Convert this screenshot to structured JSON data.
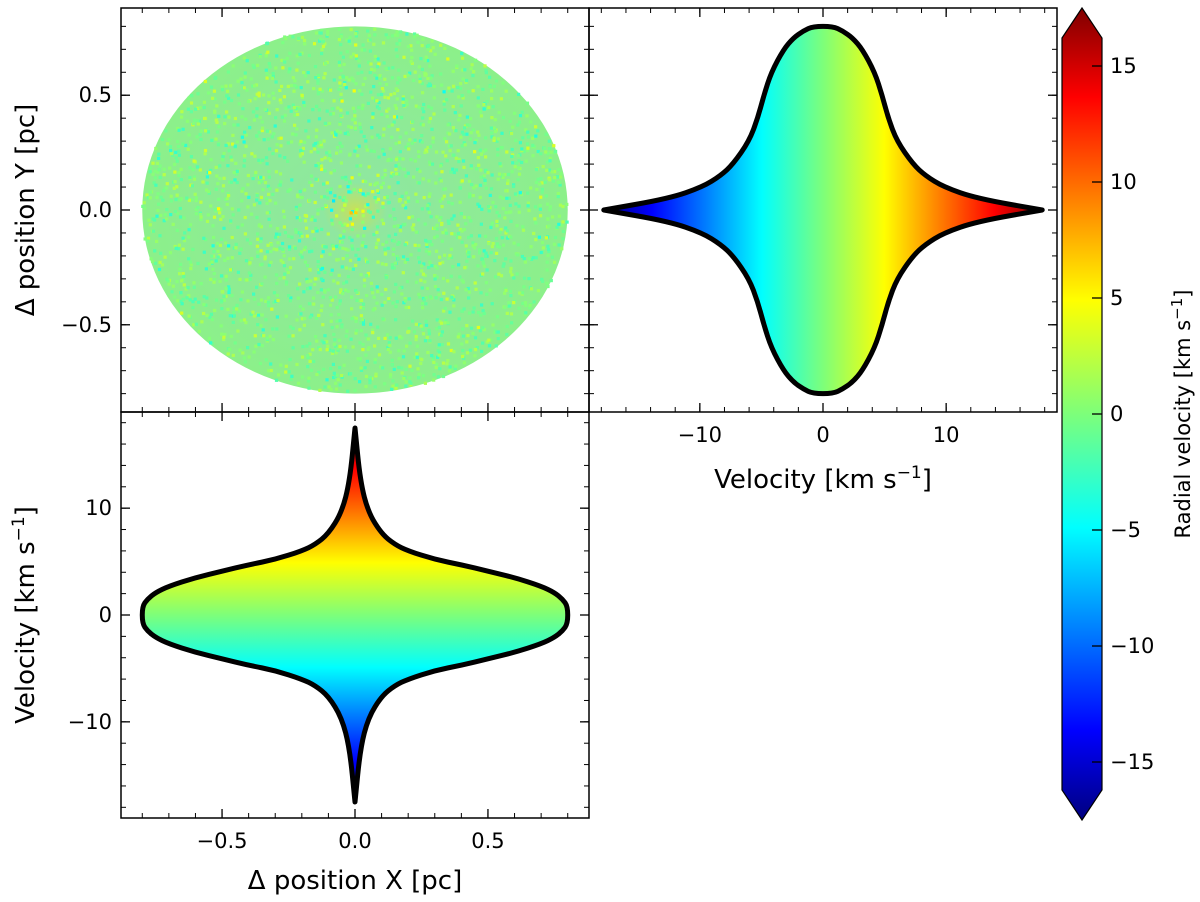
{
  "chart_data": [
    {
      "panel": "top-left",
      "type": "scatter",
      "description_shape": "filled disc of points colored by radial velocity",
      "xlim": [
        -0.88,
        0.88
      ],
      "ylim": [
        -0.88,
        0.88
      ],
      "disc_radius": 0.8,
      "xlabel": "",
      "ylabel": "Δ position Y [pc]",
      "yticks": [
        {
          "value": 0.5,
          "label": "0.5"
        },
        {
          "value": 0.0,
          "label": "0.0"
        },
        {
          "value": -0.5,
          "label": "−0.5"
        }
      ],
      "xticks": []
    },
    {
      "panel": "top-right",
      "type": "scatter",
      "xlim": [
        -19,
        19
      ],
      "ylim": [
        -0.88,
        0.88
      ],
      "xlabel": "Velocity [km s",
      "xlabel_sup": "−1",
      "xlabel_end": "]",
      "ylabel": "",
      "xticks": [
        {
          "value": -10,
          "label": "−10"
        },
        {
          "value": 0,
          "label": "0"
        },
        {
          "value": 10,
          "label": "10"
        }
      ],
      "yticks": [],
      "envelope": {
        "y": [
          0.0,
          0.05,
          0.1,
          0.15,
          0.2,
          0.3,
          0.4,
          0.5,
          0.6,
          0.7,
          0.75,
          0.78,
          0.8
        ],
        "velocity_max": [
          17.8,
          12.5,
          9.8,
          8.3,
          7.3,
          6.0,
          5.3,
          4.8,
          4.2,
          3.2,
          2.4,
          1.6,
          0.8
        ]
      }
    },
    {
      "panel": "bottom-left",
      "type": "scatter",
      "xlim": [
        -0.88,
        0.88
      ],
      "ylim": [
        -19,
        19
      ],
      "xlabel": "Δ position X [pc]",
      "ylabel": "Velocity [km s",
      "ylabel_sup": "−1",
      "ylabel_end": "]",
      "xticks": [
        {
          "value": -0.5,
          "label": "−0.5"
        },
        {
          "value": 0.0,
          "label": "0.0"
        },
        {
          "value": 0.5,
          "label": "0.5"
        }
      ],
      "yticks": [
        {
          "value": 10,
          "label": "10"
        },
        {
          "value": 0,
          "label": "0"
        },
        {
          "value": -10,
          "label": "−10"
        }
      ],
      "envelope": {
        "x": [
          0.0,
          0.02,
          0.05,
          0.1,
          0.15,
          0.2,
          0.3,
          0.4,
          0.5,
          0.6,
          0.7,
          0.75,
          0.78,
          0.8
        ],
        "velocity_max": [
          17.5,
          12.5,
          9.6,
          7.6,
          6.6,
          6.0,
          5.2,
          4.7,
          4.1,
          3.5,
          2.7,
          2.1,
          1.5,
          0.8
        ]
      }
    },
    {
      "panel": "colorbar",
      "type": "colorbar",
      "colormap": "jet",
      "range": [
        -17.5,
        17.5
      ],
      "label": "Radial velocity [km s",
      "label_sup": "−1",
      "label_end": "]",
      "ticks": [
        {
          "value": 15,
          "label": "15"
        },
        {
          "value": 10,
          "label": "10"
        },
        {
          "value": 5,
          "label": "5"
        },
        {
          "value": 0,
          "label": "0"
        },
        {
          "value": -5,
          "label": "−5"
        },
        {
          "value": -10,
          "label": "−10"
        },
        {
          "value": -15,
          "label": "−15"
        }
      ]
    }
  ]
}
